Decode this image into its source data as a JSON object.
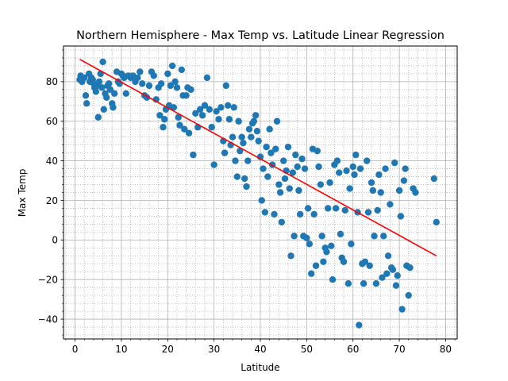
{
  "colors": {
    "point": "#1f77b4",
    "regression_line": "#ff0000",
    "major_grid": "#b0b0b0",
    "minor_grid": "#b0b0b0",
    "axis": "#000000",
    "background": "#ffffff"
  },
  "chart_data": {
    "type": "scatter",
    "title": "Northern Hemisphere - Max Temp vs. Latitude Linear Regression",
    "xlabel": "Latitude",
    "ylabel": "Max Temp",
    "xlim": [
      -2.5,
      82.5
    ],
    "ylim": [
      -50,
      98
    ],
    "xticks": [
      0,
      10,
      20,
      30,
      40,
      50,
      60,
      70,
      80
    ],
    "yticks": [
      -40,
      -20,
      0,
      20,
      40,
      60,
      80
    ],
    "x_minor_step": 2,
    "y_minor_step": 4,
    "grid": {
      "major": true,
      "minor": true,
      "minor_style": "dotted"
    },
    "legend": "none",
    "regression_line": {
      "x": [
        1,
        78
      ],
      "y": [
        91.3,
        -8.0
      ]
    },
    "points": [
      [
        1.0,
        81
      ],
      [
        1.2,
        83
      ],
      [
        1.5,
        80
      ],
      [
        2.0,
        82
      ],
      [
        2.3,
        73
      ],
      [
        2.5,
        69
      ],
      [
        3.0,
        84
      ],
      [
        3.2,
        80
      ],
      [
        3.5,
        82
      ],
      [
        3.8,
        81
      ],
      [
        4.0,
        79
      ],
      [
        4.2,
        77
      ],
      [
        4.5,
        75
      ],
      [
        4.8,
        78
      ],
      [
        5.0,
        62
      ],
      [
        5.2,
        80
      ],
      [
        5.5,
        84
      ],
      [
        5.8,
        77
      ],
      [
        6.0,
        90
      ],
      [
        6.2,
        66
      ],
      [
        6.5,
        74
      ],
      [
        6.8,
        72
      ],
      [
        7.0,
        78
      ],
      [
        7.3,
        79
      ],
      [
        7.6,
        76
      ],
      [
        8.0,
        69
      ],
      [
        8.2,
        67
      ],
      [
        8.5,
        74
      ],
      [
        9.0,
        85
      ],
      [
        9.3,
        80
      ],
      [
        9.6,
        79
      ],
      [
        10.0,
        84
      ],
      [
        10.3,
        83
      ],
      [
        10.6,
        82
      ],
      [
        11.0,
        74
      ],
      [
        11.5,
        83
      ],
      [
        12.0,
        82
      ],
      [
        12.5,
        83
      ],
      [
        13.0,
        80
      ],
      [
        13.5,
        82
      ],
      [
        14.0,
        85
      ],
      [
        14.5,
        79
      ],
      [
        15.0,
        73
      ],
      [
        15.5,
        72
      ],
      [
        16.0,
        78
      ],
      [
        16.5,
        85
      ],
      [
        17.0,
        83
      ],
      [
        17.5,
        71
      ],
      [
        18.0,
        77
      ],
      [
        18.3,
        63
      ],
      [
        18.6,
        79
      ],
      [
        19.0,
        57
      ],
      [
        19.3,
        61
      ],
      [
        19.6,
        66
      ],
      [
        20.0,
        84
      ],
      [
        20.3,
        68
      ],
      [
        20.6,
        78
      ],
      [
        21.0,
        88
      ],
      [
        21.3,
        67
      ],
      [
        21.6,
        80
      ],
      [
        22.0,
        77
      ],
      [
        22.3,
        62
      ],
      [
        22.6,
        58
      ],
      [
        23.0,
        86
      ],
      [
        23.3,
        73
      ],
      [
        23.6,
        56
      ],
      [
        24.0,
        73
      ],
      [
        24.3,
        77
      ],
      [
        24.6,
        54
      ],
      [
        25.0,
        76
      ],
      [
        25.5,
        43
      ],
      [
        26.0,
        64
      ],
      [
        26.5,
        57
      ],
      [
        27.0,
        66
      ],
      [
        27.5,
        63
      ],
      [
        28.0,
        68
      ],
      [
        28.5,
        82
      ],
      [
        29.0,
        66
      ],
      [
        29.5,
        57
      ],
      [
        30.0,
        38
      ],
      [
        30.5,
        65
      ],
      [
        31.0,
        61
      ],
      [
        31.5,
        67
      ],
      [
        32.0,
        50
      ],
      [
        32.3,
        44
      ],
      [
        32.6,
        78
      ],
      [
        33.0,
        68
      ],
      [
        33.3,
        61
      ],
      [
        33.6,
        48
      ],
      [
        34.0,
        52
      ],
      [
        34.3,
        67
      ],
      [
        34.6,
        40
      ],
      [
        35.0,
        32
      ],
      [
        35.3,
        60
      ],
      [
        35.6,
        45
      ],
      [
        36.0,
        52
      ],
      [
        36.3,
        49
      ],
      [
        36.6,
        31
      ],
      [
        37.0,
        27
      ],
      [
        37.3,
        40
      ],
      [
        37.6,
        56
      ],
      [
        38.0,
        52
      ],
      [
        38.3,
        59
      ],
      [
        38.6,
        60
      ],
      [
        39.0,
        63
      ],
      [
        39.3,
        55
      ],
      [
        39.6,
        50
      ],
      [
        40.0,
        42
      ],
      [
        40.3,
        20
      ],
      [
        40.6,
        36
      ],
      [
        41.0,
        14
      ],
      [
        41.3,
        47
      ],
      [
        41.6,
        32
      ],
      [
        42.0,
        56
      ],
      [
        42.3,
        44
      ],
      [
        42.6,
        38
      ],
      [
        43.0,
        13
      ],
      [
        43.3,
        46
      ],
      [
        43.6,
        60
      ],
      [
        44.0,
        28
      ],
      [
        44.3,
        24
      ],
      [
        44.6,
        9
      ],
      [
        45.0,
        40
      ],
      [
        45.3,
        31
      ],
      [
        45.6,
        35
      ],
      [
        46.0,
        47
      ],
      [
        46.3,
        26
      ],
      [
        46.6,
        -8
      ],
      [
        47.0,
        34
      ],
      [
        47.3,
        2
      ],
      [
        47.6,
        43
      ],
      [
        48.0,
        37
      ],
      [
        48.3,
        25
      ],
      [
        48.6,
        13
      ],
      [
        49.0,
        41
      ],
      [
        49.3,
        2
      ],
      [
        49.6,
        36
      ],
      [
        50.0,
        1
      ],
      [
        50.3,
        16
      ],
      [
        50.6,
        -2
      ],
      [
        51.0,
        -17
      ],
      [
        51.3,
        46
      ],
      [
        51.6,
        13
      ],
      [
        52.0,
        -13
      ],
      [
        52.3,
        45
      ],
      [
        52.6,
        37
      ],
      [
        53.0,
        28
      ],
      [
        53.3,
        2
      ],
      [
        53.6,
        -11
      ],
      [
        54.0,
        -4
      ],
      [
        54.3,
        -6
      ],
      [
        54.6,
        16
      ],
      [
        55.0,
        29
      ],
      [
        55.3,
        -3
      ],
      [
        55.6,
        -20
      ],
      [
        56.0,
        38
      ],
      [
        56.3,
        16
      ],
      [
        56.6,
        40
      ],
      [
        57.0,
        34
      ],
      [
        57.3,
        3
      ],
      [
        57.6,
        -9
      ],
      [
        58.0,
        -11
      ],
      [
        58.3,
        15
      ],
      [
        58.6,
        35
      ],
      [
        59.0,
        -22
      ],
      [
        59.3,
        26
      ],
      [
        59.6,
        -2
      ],
      [
        60.0,
        37
      ],
      [
        60.3,
        33
      ],
      [
        60.6,
        43
      ],
      [
        61.0,
        14
      ],
      [
        61.3,
        -43
      ],
      [
        61.6,
        36
      ],
      [
        62.0,
        -12
      ],
      [
        62.3,
        -22
      ],
      [
        62.6,
        -11
      ],
      [
        63.0,
        40
      ],
      [
        63.3,
        14
      ],
      [
        63.6,
        -13
      ],
      [
        64.0,
        29
      ],
      [
        64.3,
        25
      ],
      [
        64.6,
        2
      ],
      [
        65.0,
        -22
      ],
      [
        65.3,
        15
      ],
      [
        65.6,
        33
      ],
      [
        66.0,
        24
      ],
      [
        66.3,
        -19
      ],
      [
        66.6,
        2
      ],
      [
        67.0,
        36
      ],
      [
        67.3,
        -17
      ],
      [
        67.6,
        -8
      ],
      [
        68.0,
        18
      ],
      [
        68.3,
        -14
      ],
      [
        68.6,
        -15
      ],
      [
        69.0,
        39
      ],
      [
        69.3,
        -23
      ],
      [
        69.6,
        -18
      ],
      [
        70.0,
        25
      ],
      [
        70.3,
        12
      ],
      [
        70.6,
        -35
      ],
      [
        71.0,
        30
      ],
      [
        71.3,
        36
      ],
      [
        71.6,
        -13
      ],
      [
        72.0,
        -28
      ],
      [
        72.3,
        -14
      ],
      [
        73.0,
        26
      ],
      [
        73.5,
        24
      ],
      [
        77.5,
        31
      ],
      [
        78.0,
        9
      ]
    ]
  }
}
